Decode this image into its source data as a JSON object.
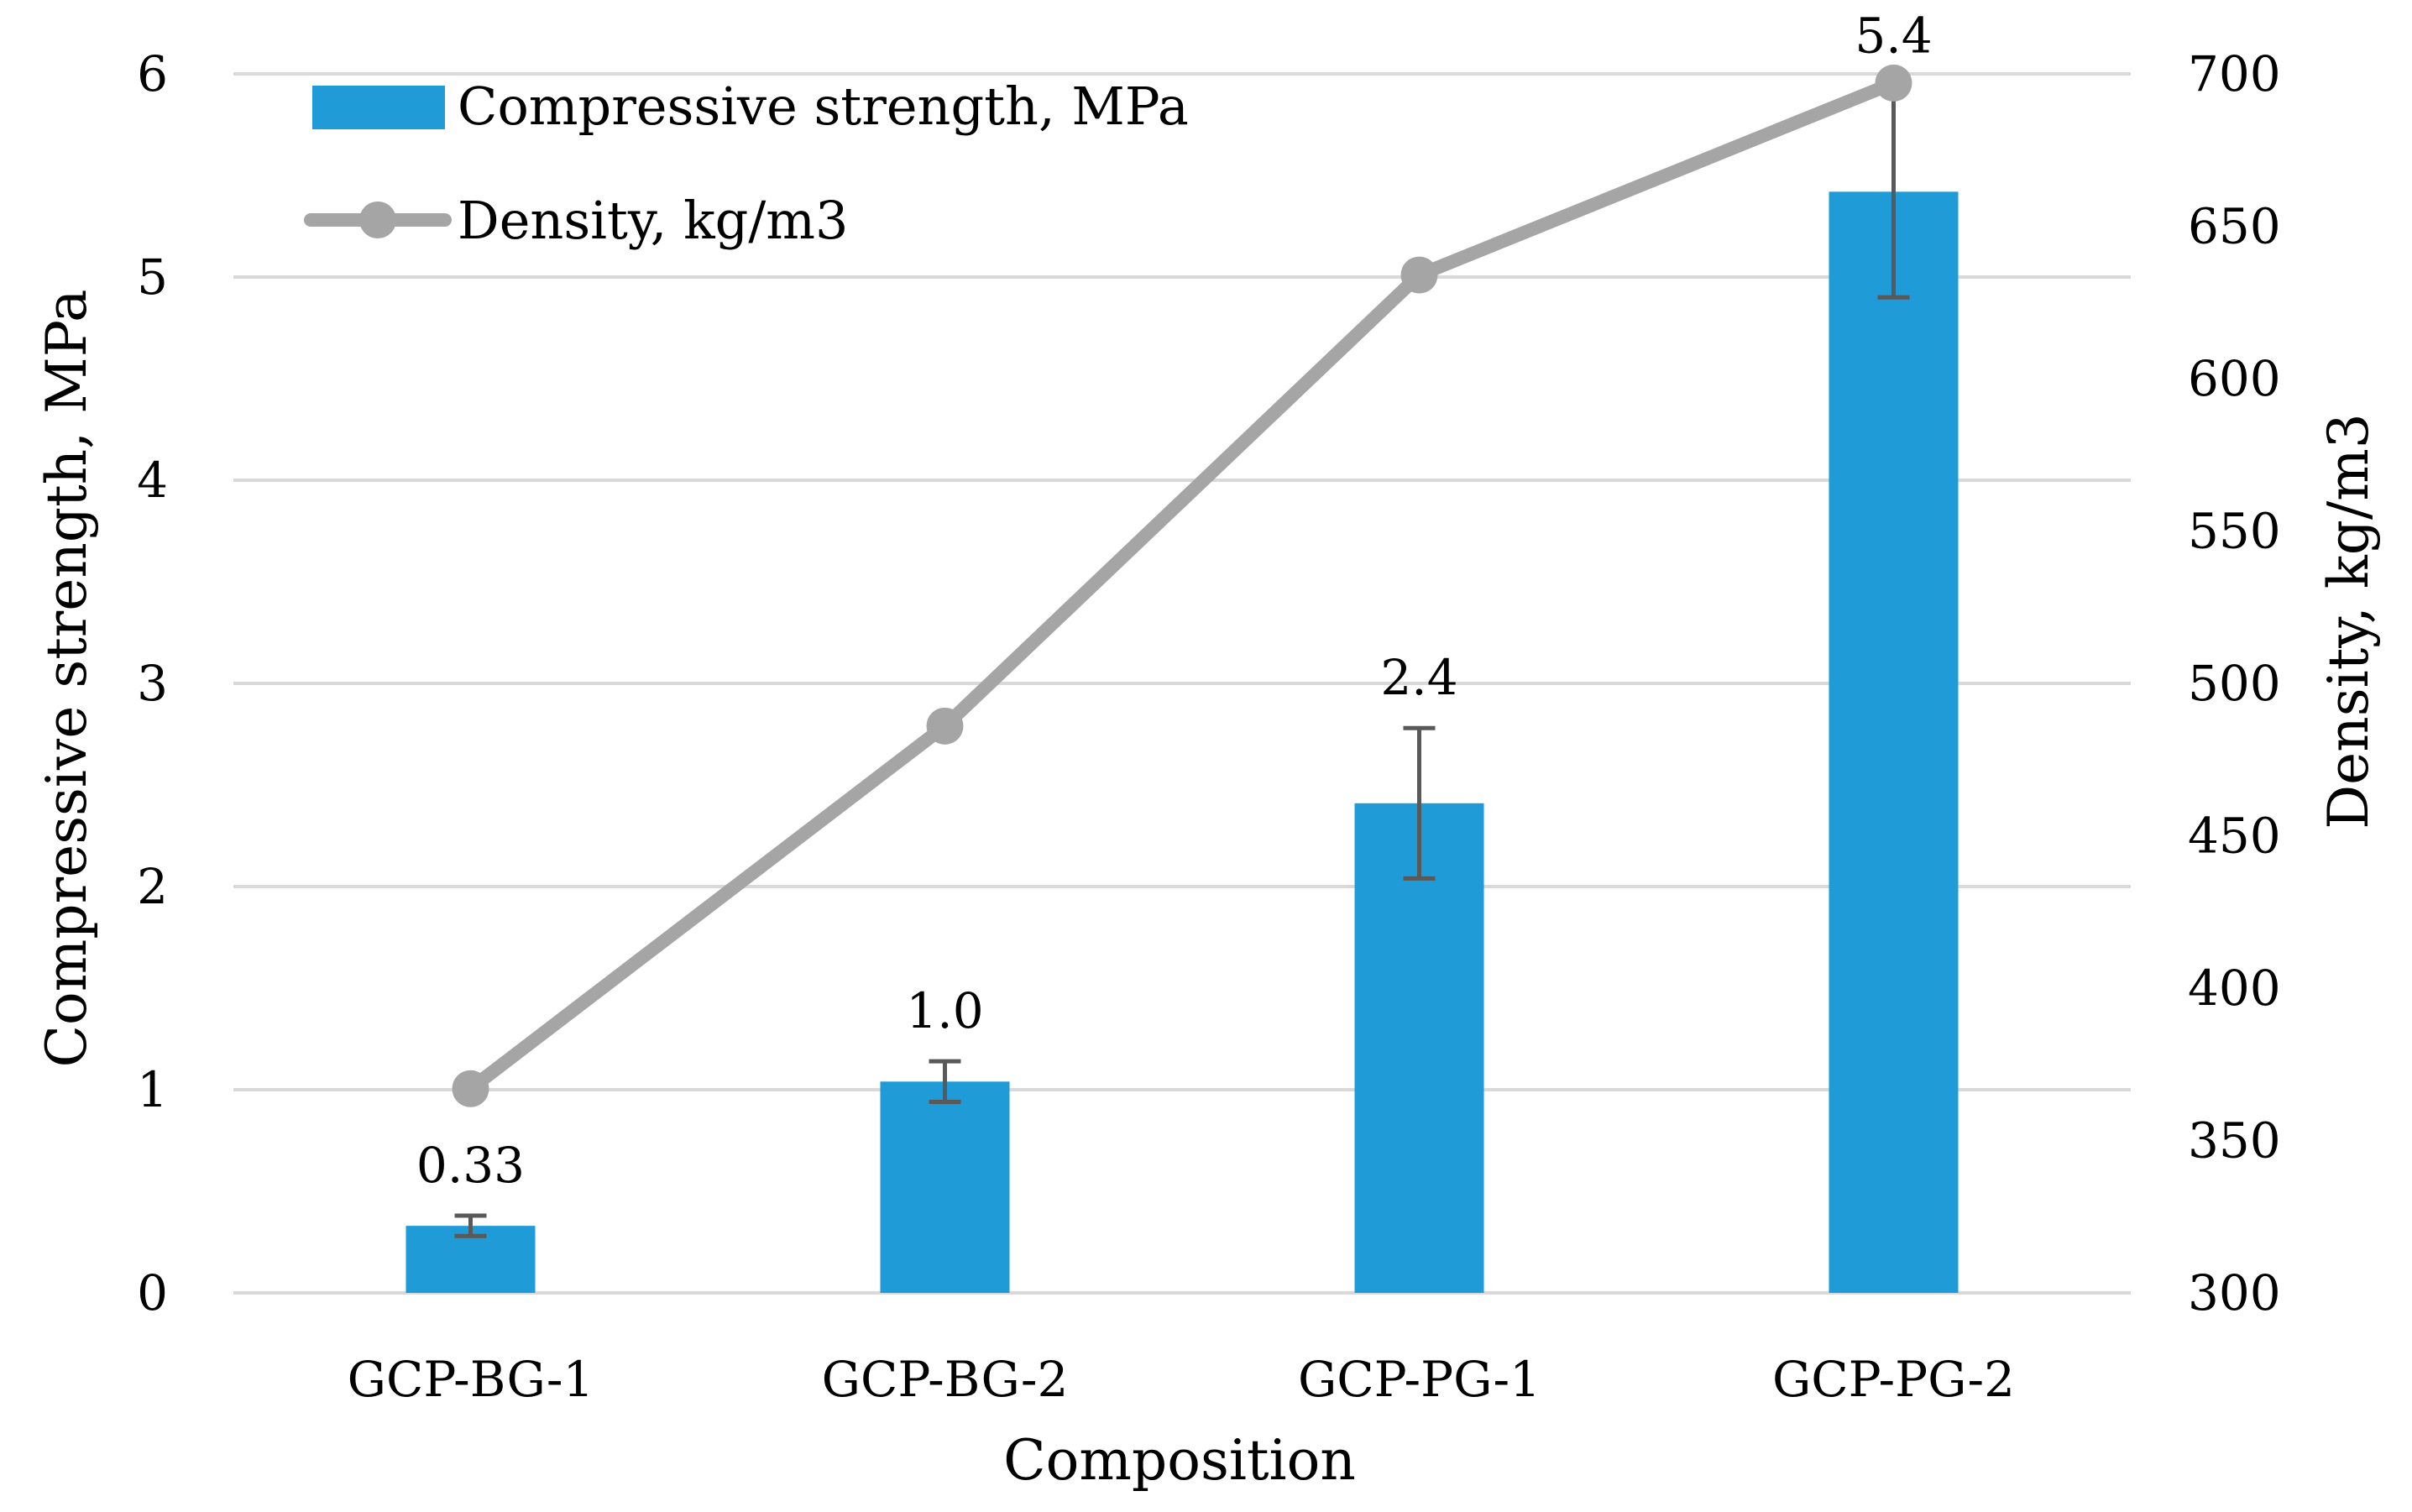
{
  "chart_data": {
    "type": "bar+line",
    "categories": [
      "GCP-BG-1",
      "GCP-BG-2",
      "GCP-PG-1",
      "GCP-PG-2"
    ],
    "series": [
      {
        "name": "Compressive strength, MPa",
        "type": "bar",
        "axis": "left",
        "color": "#1f9bd7",
        "values": [
          0.33,
          1.04,
          2.41,
          5.42
        ],
        "labels": [
          "0.33",
          "1.0",
          "2.4",
          "5.4"
        ],
        "error": [
          0.05,
          0.1,
          0.37,
          0.52
        ]
      },
      {
        "name": "Density, kg/m3",
        "type": "line",
        "axis": "right",
        "color": "#a5a5a5",
        "values": [
          367,
          486,
          634,
          697
        ]
      }
    ],
    "xlabel": "Composition",
    "ylabel_left": "Compressive strength, MPa",
    "ylabel_right": "Density, kg/m3",
    "ylim_left": [
      0,
      6
    ],
    "ylim_right": [
      300,
      700
    ],
    "yticks_left": [
      "0",
      "1",
      "2",
      "3",
      "4",
      "5",
      "6"
    ],
    "yticks_right": [
      "300",
      "350",
      "400",
      "450",
      "500",
      "550",
      "600",
      "650",
      "700"
    ],
    "grid": true,
    "legend_position": "top-left"
  }
}
